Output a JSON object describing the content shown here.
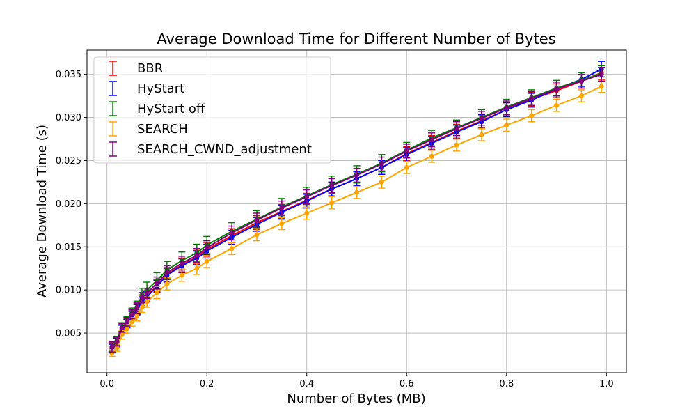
{
  "chart_data": {
    "type": "scatter",
    "title": "Average Download Time for Different Number of Bytes",
    "xlabel": "Number of Bytes (MB)",
    "ylabel": "Average Download Time (s)",
    "xlim": [
      -0.04,
      1.04
    ],
    "ylim": [
      0.0004,
      0.0378
    ],
    "xticks": [
      "0.0",
      "0.2",
      "0.4",
      "0.6",
      "0.8",
      "1.0"
    ],
    "xtick_values": [
      0,
      0.2,
      0.4,
      0.6,
      0.8,
      1.0
    ],
    "yticks": [
      "0.005",
      "0.010",
      "0.015",
      "0.020",
      "0.025",
      "0.030",
      "0.035"
    ],
    "ytick_values": [
      0.005,
      0.01,
      0.015,
      0.02,
      0.025,
      0.03,
      0.035
    ],
    "grid": true,
    "legend_position": "upper-left",
    "marker": "errorbar",
    "x": [
      0.01,
      0.02,
      0.03,
      0.04,
      0.05,
      0.06,
      0.07,
      0.08,
      0.1,
      0.12,
      0.15,
      0.18,
      0.2,
      0.25,
      0.3,
      0.35,
      0.4,
      0.45,
      0.5,
      0.55,
      0.6,
      0.65,
      0.7,
      0.75,
      0.8,
      0.85,
      0.9,
      0.95,
      0.99
    ],
    "series": [
      {
        "name": "BBR",
        "color": "#ff0000",
        "values": [
          0.0033,
          0.004,
          0.0055,
          0.0062,
          0.0071,
          0.0078,
          0.0088,
          0.0093,
          0.0105,
          0.0118,
          0.0129,
          0.0138,
          0.0147,
          0.0163,
          0.0178,
          0.0191,
          0.0204,
          0.0217,
          0.0229,
          0.0242,
          0.0258,
          0.0271,
          0.0284,
          0.0296,
          0.0309,
          0.0321,
          0.0331,
          0.0342,
          0.0352
        ],
        "errors": [
          0.0005,
          0.0005,
          0.0005,
          0.0005,
          0.0005,
          0.0006,
          0.0006,
          0.0006,
          0.0007,
          0.0008,
          0.0008,
          0.0008,
          0.0008,
          0.0008,
          0.0008,
          0.0008,
          0.0008,
          0.0008,
          0.0008,
          0.0008,
          0.0008,
          0.0008,
          0.0008,
          0.0008,
          0.0008,
          0.0008,
          0.0008,
          0.0008,
          0.0008
        ]
      },
      {
        "name": "HyStart",
        "color": "#0000ff",
        "values": [
          0.0032,
          0.0039,
          0.0054,
          0.0061,
          0.007,
          0.0077,
          0.0086,
          0.0092,
          0.0104,
          0.0117,
          0.0128,
          0.0137,
          0.0145,
          0.0161,
          0.0176,
          0.019,
          0.0203,
          0.0217,
          0.0229,
          0.0242,
          0.0257,
          0.027,
          0.0283,
          0.0295,
          0.0309,
          0.032,
          0.0333,
          0.0344,
          0.0356
        ],
        "errors": [
          0.0005,
          0.0005,
          0.0005,
          0.0005,
          0.0005,
          0.0006,
          0.0006,
          0.0006,
          0.0007,
          0.0008,
          0.0008,
          0.0008,
          0.0008,
          0.0008,
          0.0008,
          0.0008,
          0.0008,
          0.0008,
          0.0008,
          0.0008,
          0.0008,
          0.0008,
          0.0008,
          0.0008,
          0.0008,
          0.0008,
          0.0008,
          0.0008,
          0.0009
        ]
      },
      {
        "name": "HyStart off",
        "color": "#008000",
        "values": [
          0.0034,
          0.0041,
          0.0057,
          0.0064,
          0.0073,
          0.008,
          0.0094,
          0.01,
          0.0111,
          0.0123,
          0.0134,
          0.0143,
          0.0152,
          0.0168,
          0.0182,
          0.0196,
          0.0209,
          0.0222,
          0.0234,
          0.0247,
          0.0262,
          0.0276,
          0.0288,
          0.03,
          0.0312,
          0.0323,
          0.0334,
          0.0343,
          0.0351
        ],
        "errors": [
          0.0005,
          0.0005,
          0.0005,
          0.0005,
          0.0006,
          0.0007,
          0.0008,
          0.0009,
          0.0009,
          0.001,
          0.001,
          0.001,
          0.001,
          0.001,
          0.001,
          0.001,
          0.001,
          0.001,
          0.001,
          0.001,
          0.0009,
          0.0009,
          0.0009,
          0.0009,
          0.0009,
          0.0009,
          0.0009,
          0.0009,
          0.0009
        ]
      },
      {
        "name": "SEARCH",
        "color": "#ffa500",
        "values": [
          0.0027,
          0.0033,
          0.0048,
          0.0055,
          0.0063,
          0.007,
          0.008,
          0.0086,
          0.0097,
          0.0107,
          0.0117,
          0.0125,
          0.0133,
          0.0148,
          0.0164,
          0.0177,
          0.0189,
          0.0201,
          0.0213,
          0.0225,
          0.0242,
          0.0255,
          0.0268,
          0.028,
          0.0291,
          0.0302,
          0.0314,
          0.0325,
          0.0336
        ],
        "errors": [
          0.0004,
          0.0004,
          0.0005,
          0.0005,
          0.0005,
          0.0006,
          0.0006,
          0.0006,
          0.0007,
          0.0007,
          0.0007,
          0.0007,
          0.0007,
          0.0007,
          0.0007,
          0.0007,
          0.0007,
          0.0007,
          0.0007,
          0.0007,
          0.0007,
          0.0007,
          0.0007,
          0.0007,
          0.0007,
          0.0007,
          0.0007,
          0.0007,
          0.0007
        ]
      },
      {
        "name": "SEARCH_CWND_adjustment",
        "color": "#800080",
        "values": [
          0.0034,
          0.004,
          0.0056,
          0.0063,
          0.0072,
          0.0079,
          0.0091,
          0.0096,
          0.0108,
          0.012,
          0.0131,
          0.014,
          0.0149,
          0.0166,
          0.0181,
          0.0195,
          0.0208,
          0.0221,
          0.0233,
          0.0246,
          0.0261,
          0.0274,
          0.0287,
          0.0299,
          0.0311,
          0.0322,
          0.0333,
          0.0342,
          0.035
        ],
        "errors": [
          0.0006,
          0.0005,
          0.0005,
          0.0005,
          0.0005,
          0.0006,
          0.0006,
          0.0006,
          0.0007,
          0.0008,
          0.0008,
          0.0008,
          0.0008,
          0.0008,
          0.0008,
          0.0008,
          0.0008,
          0.0008,
          0.0008,
          0.0008,
          0.0008,
          0.0008,
          0.0008,
          0.0008,
          0.0008,
          0.0008,
          0.0008,
          0.0008,
          0.0008
        ]
      }
    ]
  }
}
